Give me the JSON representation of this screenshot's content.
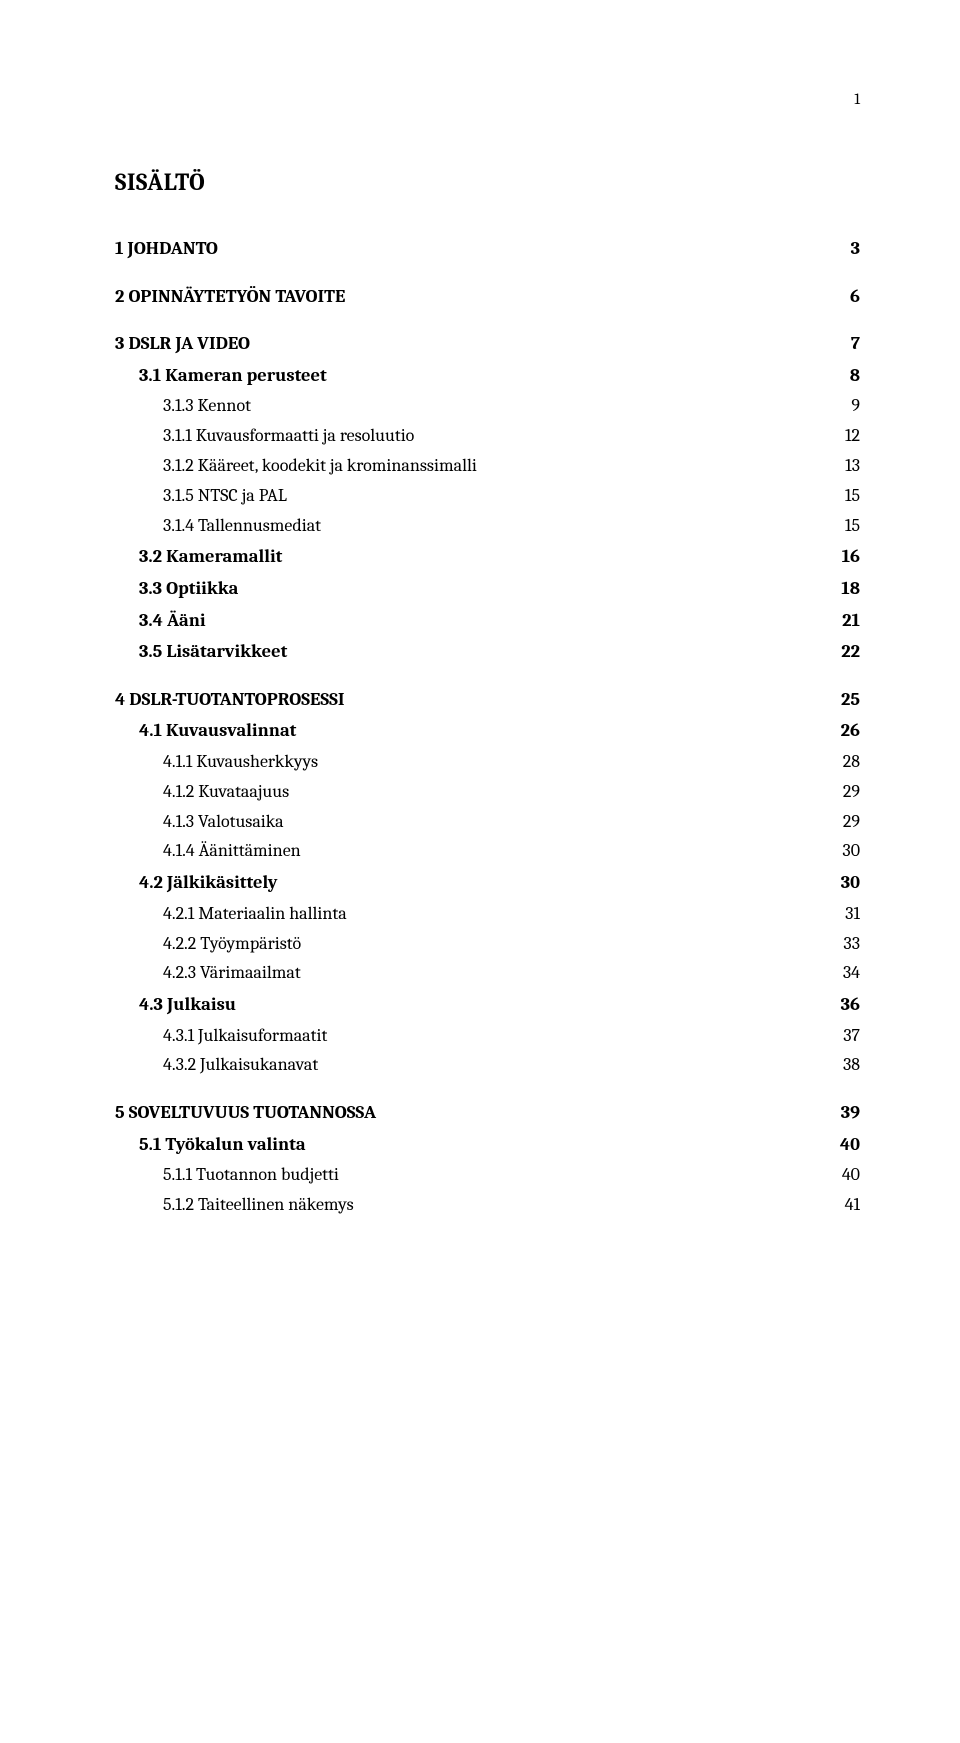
{
  "page_number": "1",
  "title": "SISÄLTÖ",
  "entries": [
    {
      "level": 1,
      "label": "1 JOHDANTO",
      "page": "3"
    },
    {
      "level": 1,
      "label": "2 OPINNÄYTETYÖN TAVOITE",
      "page": "6"
    },
    {
      "level": 1,
      "label": "3 DSLR JA VIDEO",
      "page": "7"
    },
    {
      "level": 2,
      "label": "3.1 Kameran perusteet",
      "page": "8"
    },
    {
      "level": 3,
      "label": "3.1.3 Kennot",
      "page": "9"
    },
    {
      "level": 3,
      "label": "3.1.1 Kuvausformaatti ja resoluutio",
      "page": "12"
    },
    {
      "level": 3,
      "label": "3.1.2 Kääreet, koodekit ja krominanssimalli",
      "page": "13"
    },
    {
      "level": 3,
      "label": "3.1.5 NTSC ja PAL",
      "page": "15"
    },
    {
      "level": 3,
      "label": "3.1.4 Tallennusmediat",
      "page": "15"
    },
    {
      "level": 2,
      "label": "3.2 Kameramallit",
      "page": "16"
    },
    {
      "level": 2,
      "label": "3.3 Optiikka",
      "page": "18"
    },
    {
      "level": 2,
      "label": "3.4 Ääni",
      "page": "21"
    },
    {
      "level": 2,
      "label": "3.5 Lisätarvikkeet",
      "page": "22"
    },
    {
      "level": 1,
      "label": "4 DSLR-TUOTANTOPROSESSI",
      "page": "25"
    },
    {
      "level": 2,
      "label": "4.1 Kuvausvalinnat",
      "page": "26"
    },
    {
      "level": 3,
      "label": "4.1.1 Kuvausherkkyys",
      "page": "28"
    },
    {
      "level": 3,
      "label": "4.1.2 Kuvataajuus",
      "page": "29"
    },
    {
      "level": 3,
      "label": "4.1.3 Valotusaika",
      "page": "29"
    },
    {
      "level": 3,
      "label": "4.1.4 Äänittäminen",
      "page": "30"
    },
    {
      "level": 2,
      "label": "4.2 Jälkikäsittely",
      "page": "30"
    },
    {
      "level": 3,
      "label": "4.2.1 Materiaalin hallinta",
      "page": "31"
    },
    {
      "level": 3,
      "label": "4.2.2 Työympäristö",
      "page": "33"
    },
    {
      "level": 3,
      "label": "4.2.3 Värimaailmat",
      "page": "34"
    },
    {
      "level": 2,
      "label": "4.3 Julkaisu",
      "page": "36"
    },
    {
      "level": 3,
      "label": "4.3.1 Julkaisuformaatit",
      "page": "37"
    },
    {
      "level": 3,
      "label": "4.3.2 Julkaisukanavat",
      "page": "38"
    },
    {
      "level": 1,
      "label": "5 SOVELTUVUUS TUOTANNOSSA",
      "page": "39"
    },
    {
      "level": 2,
      "label": "5.1 Työkalun valinta",
      "page": "40"
    },
    {
      "level": 3,
      "label": "5.1.1 Tuotannon budjetti",
      "page": "40"
    },
    {
      "level": 3,
      "label": "5.1.2 Taiteellinen näkemys",
      "page": "41"
    }
  ]
}
